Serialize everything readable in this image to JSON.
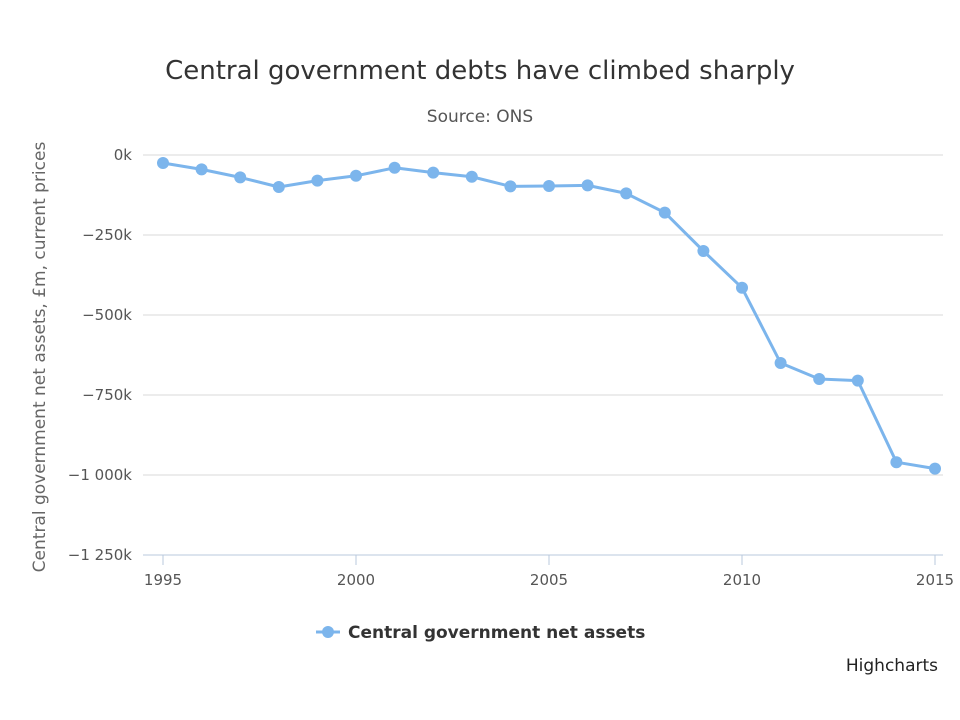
{
  "chart_data": {
    "type": "line",
    "title": "Central government debts have climbed sharply",
    "subtitle": "Source: ONS",
    "ylabel": "Central government net assets, £m, current prices",
    "xlabel": "",
    "x": [
      1995,
      1996,
      1997,
      1998,
      1999,
      2000,
      2001,
      2002,
      2003,
      2004,
      2005,
      2006,
      2007,
      2008,
      2009,
      2010,
      2011,
      2012,
      2013,
      2014,
      2015
    ],
    "series": [
      {
        "name": "Central government net assets",
        "color": "#7cb5ec",
        "values": [
          -25000,
          -45000,
          -70000,
          -100000,
          -80000,
          -65000,
          -40000,
          -55000,
          -68000,
          -98000,
          -97000,
          -95000,
          -120000,
          -180000,
          -300000,
          -415000,
          -650000,
          -700000,
          -705000,
          -960000,
          -980000
        ]
      }
    ],
    "xlim": [
      1995,
      2015
    ],
    "ylim": [
      -1250000,
      0
    ],
    "x_ticks": [
      1995,
      2000,
      2005,
      2010,
      2015
    ],
    "x_tick_labels": [
      "1995",
      "2000",
      "2005",
      "2010",
      "2015"
    ],
    "y_ticks": [
      0,
      -250000,
      -500000,
      -750000,
      -1000000,
      -1250000
    ],
    "y_tick_labels": [
      "0k",
      "−250k",
      "−500k",
      "−750k",
      "−1 000k",
      "−1 250k"
    ],
    "grid": true,
    "legend_position": "bottom-center",
    "credits": "Highcharts"
  }
}
